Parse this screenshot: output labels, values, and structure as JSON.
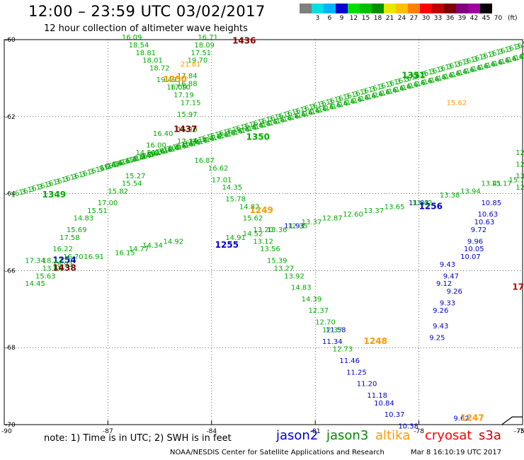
{
  "title": "12:00 – 23:59 UTC 03/02/2017",
  "subtitle": "12 hour collection of altimeter wave heights",
  "colorbar": {
    "colors": [
      "#808080",
      "#00e0e0",
      "#00b4ff",
      "#0000d0",
      "#00e000",
      "#00c000",
      "#009000",
      "#e8e800",
      "#ffc000",
      "#ff8000",
      "#ff0000",
      "#c00000",
      "#800000",
      "#800080",
      "#a000a0",
      "#000000"
    ],
    "labels": [
      "",
      "3",
      "6",
      "9",
      "12",
      "15",
      "18",
      "21",
      "24",
      "27",
      "30",
      "33",
      "36",
      "39",
      "42",
      "45",
      "70"
    ],
    "unit": "(ft)"
  },
  "note": "note:  1) Time is in UTC;  2) SWH is in feet",
  "satellites": [
    {
      "name": "jason2",
      "color": "#0000cc"
    },
    {
      "name": "jason3",
      "color": "#008800"
    },
    {
      "name": "altika",
      "color": "#ff9900"
    },
    {
      "name": "cryosat",
      "color": "#ff0000"
    },
    {
      "name": "s3a",
      "color": "#cc0000"
    }
  ],
  "footer": "NOAA/NESDIS Center for Satellite Applications and Research",
  "footer_time": "Mar  8 16:10:19 UTC 2017",
  "chart_data": {
    "type": "scatter",
    "xlim": [
      -90,
      -75
    ],
    "ylim": [
      -70,
      -60
    ],
    "x_ticks": [
      -87,
      -84,
      -81,
      -78,
      -75
    ],
    "y_ticks": [
      -60,
      -62,
      -64,
      -66,
      -68,
      -70
    ],
    "x_tick_labels": [
      "-87",
      "-84",
      "-81",
      "-78",
      "-75"
    ],
    "y_tick_labels": [
      "-60",
      "-62",
      "-64",
      "-66",
      "-68",
      "-70"
    ],
    "edge_tick_labels": {
      "left": "-90",
      "right": "-75"
    },
    "grid": true,
    "series": [
      {
        "name": "jason2",
        "color": "#0000cc",
        "points": [
          {
            "x": -80.7,
            "y": -67.6,
            "v": "11.58"
          },
          {
            "x": -80.8,
            "y": -67.9,
            "v": "11.34"
          },
          {
            "x": -80.3,
            "y": -68.4,
            "v": "11.46"
          },
          {
            "x": -80.1,
            "y": -68.7,
            "v": "11.25"
          },
          {
            "x": -79.8,
            "y": -69.0,
            "v": "11.20"
          },
          {
            "x": -79.5,
            "y": -69.3,
            "v": "11.18"
          },
          {
            "x": -79.3,
            "y": -69.5,
            "v": "10.84"
          },
          {
            "x": -79.0,
            "y": -69.8,
            "v": "10.37"
          },
          {
            "x": -78.6,
            "y": -70.1,
            "v": "10.38"
          },
          {
            "x": -77.4,
            "y": -65.9,
            "v": "9.43"
          },
          {
            "x": -77.3,
            "y": -66.2,
            "v": "9.47"
          },
          {
            "x": -77.5,
            "y": -66.4,
            "v": "9.12"
          },
          {
            "x": -77.2,
            "y": -66.6,
            "v": "9.26"
          },
          {
            "x": -77.4,
            "y": -66.9,
            "v": "9.33"
          },
          {
            "x": -77.6,
            "y": -67.1,
            "v": "9.26"
          },
          {
            "x": -77.6,
            "y": -67.5,
            "v": "9.43"
          },
          {
            "x": -77.7,
            "y": -67.8,
            "v": "9.25"
          },
          {
            "x": -76.2,
            "y": -64.3,
            "v": "10.85"
          },
          {
            "x": -76.3,
            "y": -64.6,
            "v": "10.63"
          },
          {
            "x": -76.4,
            "y": -64.8,
            "v": "10.63"
          },
          {
            "x": -76.5,
            "y": -65.0,
            "v": "9.72"
          },
          {
            "x": -76.6,
            "y": -65.3,
            "v": "9.96"
          },
          {
            "x": -76.7,
            "y": -65.5,
            "v": "10.05"
          },
          {
            "x": -76.8,
            "y": -65.7,
            "v": "10.07"
          },
          {
            "x": -77.0,
            "y": -69.9,
            "v": "9.62"
          },
          {
            "x": -81.9,
            "y": -64.9,
            "v": "11.93"
          },
          {
            "x": -78.3,
            "y": -64.3,
            "v": "11.83"
          }
        ],
        "time_labels": [
          {
            "x": -78.0,
            "y": -64.4,
            "t": "1256"
          },
          {
            "x": -83.9,
            "y": -65.4,
            "t": "1255"
          },
          {
            "x": -88.6,
            "y": -65.8,
            "t": "1254"
          }
        ]
      },
      {
        "name": "jason3",
        "color": "#00aa00",
        "points": [
          {
            "x": -86.6,
            "y": -60.0,
            "v": "16.09"
          },
          {
            "x": -86.4,
            "y": -60.2,
            "v": "18.54"
          },
          {
            "x": -86.2,
            "y": -60.4,
            "v": "18.81"
          },
          {
            "x": -86.0,
            "y": -60.6,
            "v": "18.01"
          },
          {
            "x": -85.8,
            "y": -60.8,
            "v": "18.72"
          },
          {
            "x": -85.6,
            "y": -61.1,
            "v": "19.49"
          },
          {
            "x": -85.3,
            "y": -61.3,
            "v": "16.09"
          },
          {
            "x": -85.1,
            "y": -61.5,
            "v": "17.19"
          },
          {
            "x": -84.9,
            "y": -61.7,
            "v": "17.15"
          },
          {
            "x": -85.0,
            "y": -62.0,
            "v": "15.97"
          },
          {
            "x": -85.7,
            "y": -62.5,
            "v": "16.40"
          },
          {
            "x": -85.9,
            "y": -62.8,
            "v": "16.00"
          },
          {
            "x": -86.2,
            "y": -63.0,
            "v": "14.51"
          },
          {
            "x": -86.5,
            "y": -63.6,
            "v": "15.27"
          },
          {
            "x": -86.6,
            "y": -63.8,
            "v": "15.54"
          },
          {
            "x": -87.0,
            "y": -64.0,
            "v": "15.82"
          },
          {
            "x": -87.3,
            "y": -64.3,
            "v": "17.00"
          },
          {
            "x": -87.6,
            "y": -64.5,
            "v": "15.51"
          },
          {
            "x": -88.0,
            "y": -64.7,
            "v": "14.83"
          },
          {
            "x": -88.2,
            "y": -65.0,
            "v": "15.69"
          },
          {
            "x": -88.4,
            "y": -65.2,
            "v": "17.58"
          },
          {
            "x": -88.6,
            "y": -65.5,
            "v": "16.22"
          },
          {
            "x": -88.9,
            "y": -66.0,
            "v": "13.66"
          },
          {
            "x": -89.1,
            "y": -66.2,
            "v": "15.63"
          },
          {
            "x": -89.4,
            "y": -66.4,
            "v": "14.45"
          },
          {
            "x": -84.4,
            "y": -60.0,
            "v": "16.71"
          },
          {
            "x": -84.5,
            "y": -60.2,
            "v": "18.09"
          },
          {
            "x": -84.6,
            "y": -60.4,
            "v": "17.51"
          },
          {
            "x": -84.7,
            "y": -60.6,
            "v": "19.70"
          },
          {
            "x": -85.0,
            "y": -61.0,
            "v": "17.84"
          },
          {
            "x": -85.0,
            "y": -61.2,
            "v": "16.88"
          },
          {
            "x": -85.2,
            "y": -61.3,
            "v": "17.10"
          },
          {
            "x": -85.0,
            "y": -62.4,
            "v": "16.30"
          },
          {
            "x": -85.0,
            "y": -62.7,
            "v": "17.34"
          },
          {
            "x": -84.5,
            "y": -63.2,
            "v": "16.87"
          },
          {
            "x": -84.1,
            "y": -63.4,
            "v": "16.62"
          },
          {
            "x": -84.0,
            "y": -63.7,
            "v": "17.01"
          },
          {
            "x": -83.7,
            "y": -63.9,
            "v": "14.35"
          },
          {
            "x": -83.6,
            "y": -64.2,
            "v": "15.78"
          },
          {
            "x": -83.2,
            "y": -64.4,
            "v": "14.82"
          },
          {
            "x": -83.1,
            "y": -64.7,
            "v": "15.62"
          },
          {
            "x": -82.8,
            "y": -65.0,
            "v": "13.20"
          },
          {
            "x": -82.8,
            "y": -65.3,
            "v": "13.12"
          },
          {
            "x": -82.6,
            "y": -65.5,
            "v": "13.56"
          },
          {
            "x": -82.4,
            "y": -65.8,
            "v": "15.39"
          },
          {
            "x": -82.2,
            "y": -66.0,
            "v": "13.27"
          },
          {
            "x": -81.9,
            "y": -66.2,
            "v": "13.92"
          },
          {
            "x": -81.7,
            "y": -66.5,
            "v": "14.83"
          },
          {
            "x": -81.4,
            "y": -66.8,
            "v": "14.39"
          },
          {
            "x": -81.2,
            "y": -67.1,
            "v": "12.37"
          },
          {
            "x": -81.0,
            "y": -67.4,
            "v": "12.70"
          },
          {
            "x": -80.8,
            "y": -67.6,
            "v": "12.37"
          },
          {
            "x": -80.5,
            "y": -68.1,
            "v": "12.73"
          },
          {
            "x": -86.8,
            "y": -65.6,
            "v": "16.15"
          },
          {
            "x": -86.4,
            "y": -65.5,
            "v": "14.77"
          },
          {
            "x": -86.0,
            "y": -65.4,
            "v": "14.34"
          },
          {
            "x": -85.4,
            "y": -65.3,
            "v": "14.92"
          },
          {
            "x": -83.6,
            "y": -65.2,
            "v": "14.91"
          },
          {
            "x": -83.1,
            "y": -65.1,
            "v": "14.52"
          },
          {
            "x": -82.4,
            "y": -65.0,
            "v": "13.36"
          },
          {
            "x": -81.8,
            "y": -64.9,
            "v": "12.35"
          },
          {
            "x": -81.4,
            "y": -64.8,
            "v": "13.37"
          },
          {
            "x": -80.8,
            "y": -64.7,
            "v": "12.87"
          },
          {
            "x": -80.2,
            "y": -64.6,
            "v": "12.60"
          },
          {
            "x": -79.6,
            "y": -64.5,
            "v": "13.37"
          },
          {
            "x": -79.0,
            "y": -64.4,
            "v": "13.65"
          },
          {
            "x": -78.2,
            "y": -64.3,
            "v": "13.42"
          },
          {
            "x": -77.4,
            "y": -64.1,
            "v": "13.38"
          },
          {
            "x": -76.8,
            "y": -64.0,
            "v": "13.94"
          },
          {
            "x": -76.2,
            "y": -63.8,
            "v": "13.41"
          },
          {
            "x": -75.9,
            "y": -63.8,
            "v": "15.17"
          },
          {
            "x": -75.4,
            "y": -63.7,
            "v": "15.79"
          },
          {
            "x": -75.2,
            "y": -63.0,
            "v": "12.31"
          },
          {
            "x": -75.2,
            "y": -63.3,
            "v": "12.81"
          },
          {
            "x": -75.2,
            "y": -63.6,
            "v": "13.38"
          },
          {
            "x": -75.2,
            "y": -63.9,
            "v": "12.74"
          },
          {
            "x": -89.4,
            "y": -65.8,
            "v": "17.34"
          },
          {
            "x": -88.9,
            "y": -65.8,
            "v": "18.13"
          },
          {
            "x": -88.6,
            "y": -65.9,
            "v": "18.93"
          },
          {
            "x": -88.3,
            "y": -65.7,
            "v": "16.70"
          },
          {
            "x": -87.7,
            "y": -65.7,
            "v": "16.91"
          }
        ],
        "time_labels": [
          {
            "x": -78.5,
            "y": -61.0,
            "t": "1351"
          },
          {
            "x": -83.0,
            "y": -62.6,
            "t": "1350"
          },
          {
            "x": -88.9,
            "y": -64.1,
            "t": "1349"
          }
        ],
        "tracks": [
          {
            "from": [
              -89.8,
              -64.1
            ],
            "to": [
              -75.0,
              -60.2
            ],
            "v": "16.3"
          },
          {
            "from": [
              -87.2,
              -63.4
            ],
            "to": [
              -75.0,
              -60.5
            ],
            "v": "16.4"
          }
        ]
      },
      {
        "name": "altika",
        "color": "#ff9900",
        "points": [
          {
            "x": -84.9,
            "y": -60.7,
            "v": "21.81"
          },
          {
            "x": -77.2,
            "y": -61.7,
            "v": "15.62"
          }
        ],
        "time_labels": [
          {
            "x": -85.4,
            "y": -61.1,
            "t": "1250"
          },
          {
            "x": -82.9,
            "y": -64.5,
            "t": "1249"
          },
          {
            "x": -79.6,
            "y": -67.9,
            "t": "1248"
          },
          {
            "x": -76.8,
            "y": -69.9,
            "t": "1247"
          }
        ]
      },
      {
        "name": "cryosat",
        "color": "#cc0000",
        "points": [],
        "time_labels": [
          {
            "x": -75.3,
            "y": -66.5,
            "t": "17"
          }
        ]
      },
      {
        "name": "s3a",
        "color": "#800000",
        "points": [],
        "time_labels": [
          {
            "x": -83.4,
            "y": -60.1,
            "t": "1436"
          },
          {
            "x": -85.1,
            "y": -62.4,
            "t": "1437"
          },
          {
            "x": -88.6,
            "y": -66.0,
            "t": "1438"
          }
        ]
      }
    ],
    "coastline": [
      [
        -75.6,
        -70.0
      ],
      [
        -75.3,
        -69.8
      ],
      [
        -75.0,
        -69.8
      ]
    ]
  }
}
